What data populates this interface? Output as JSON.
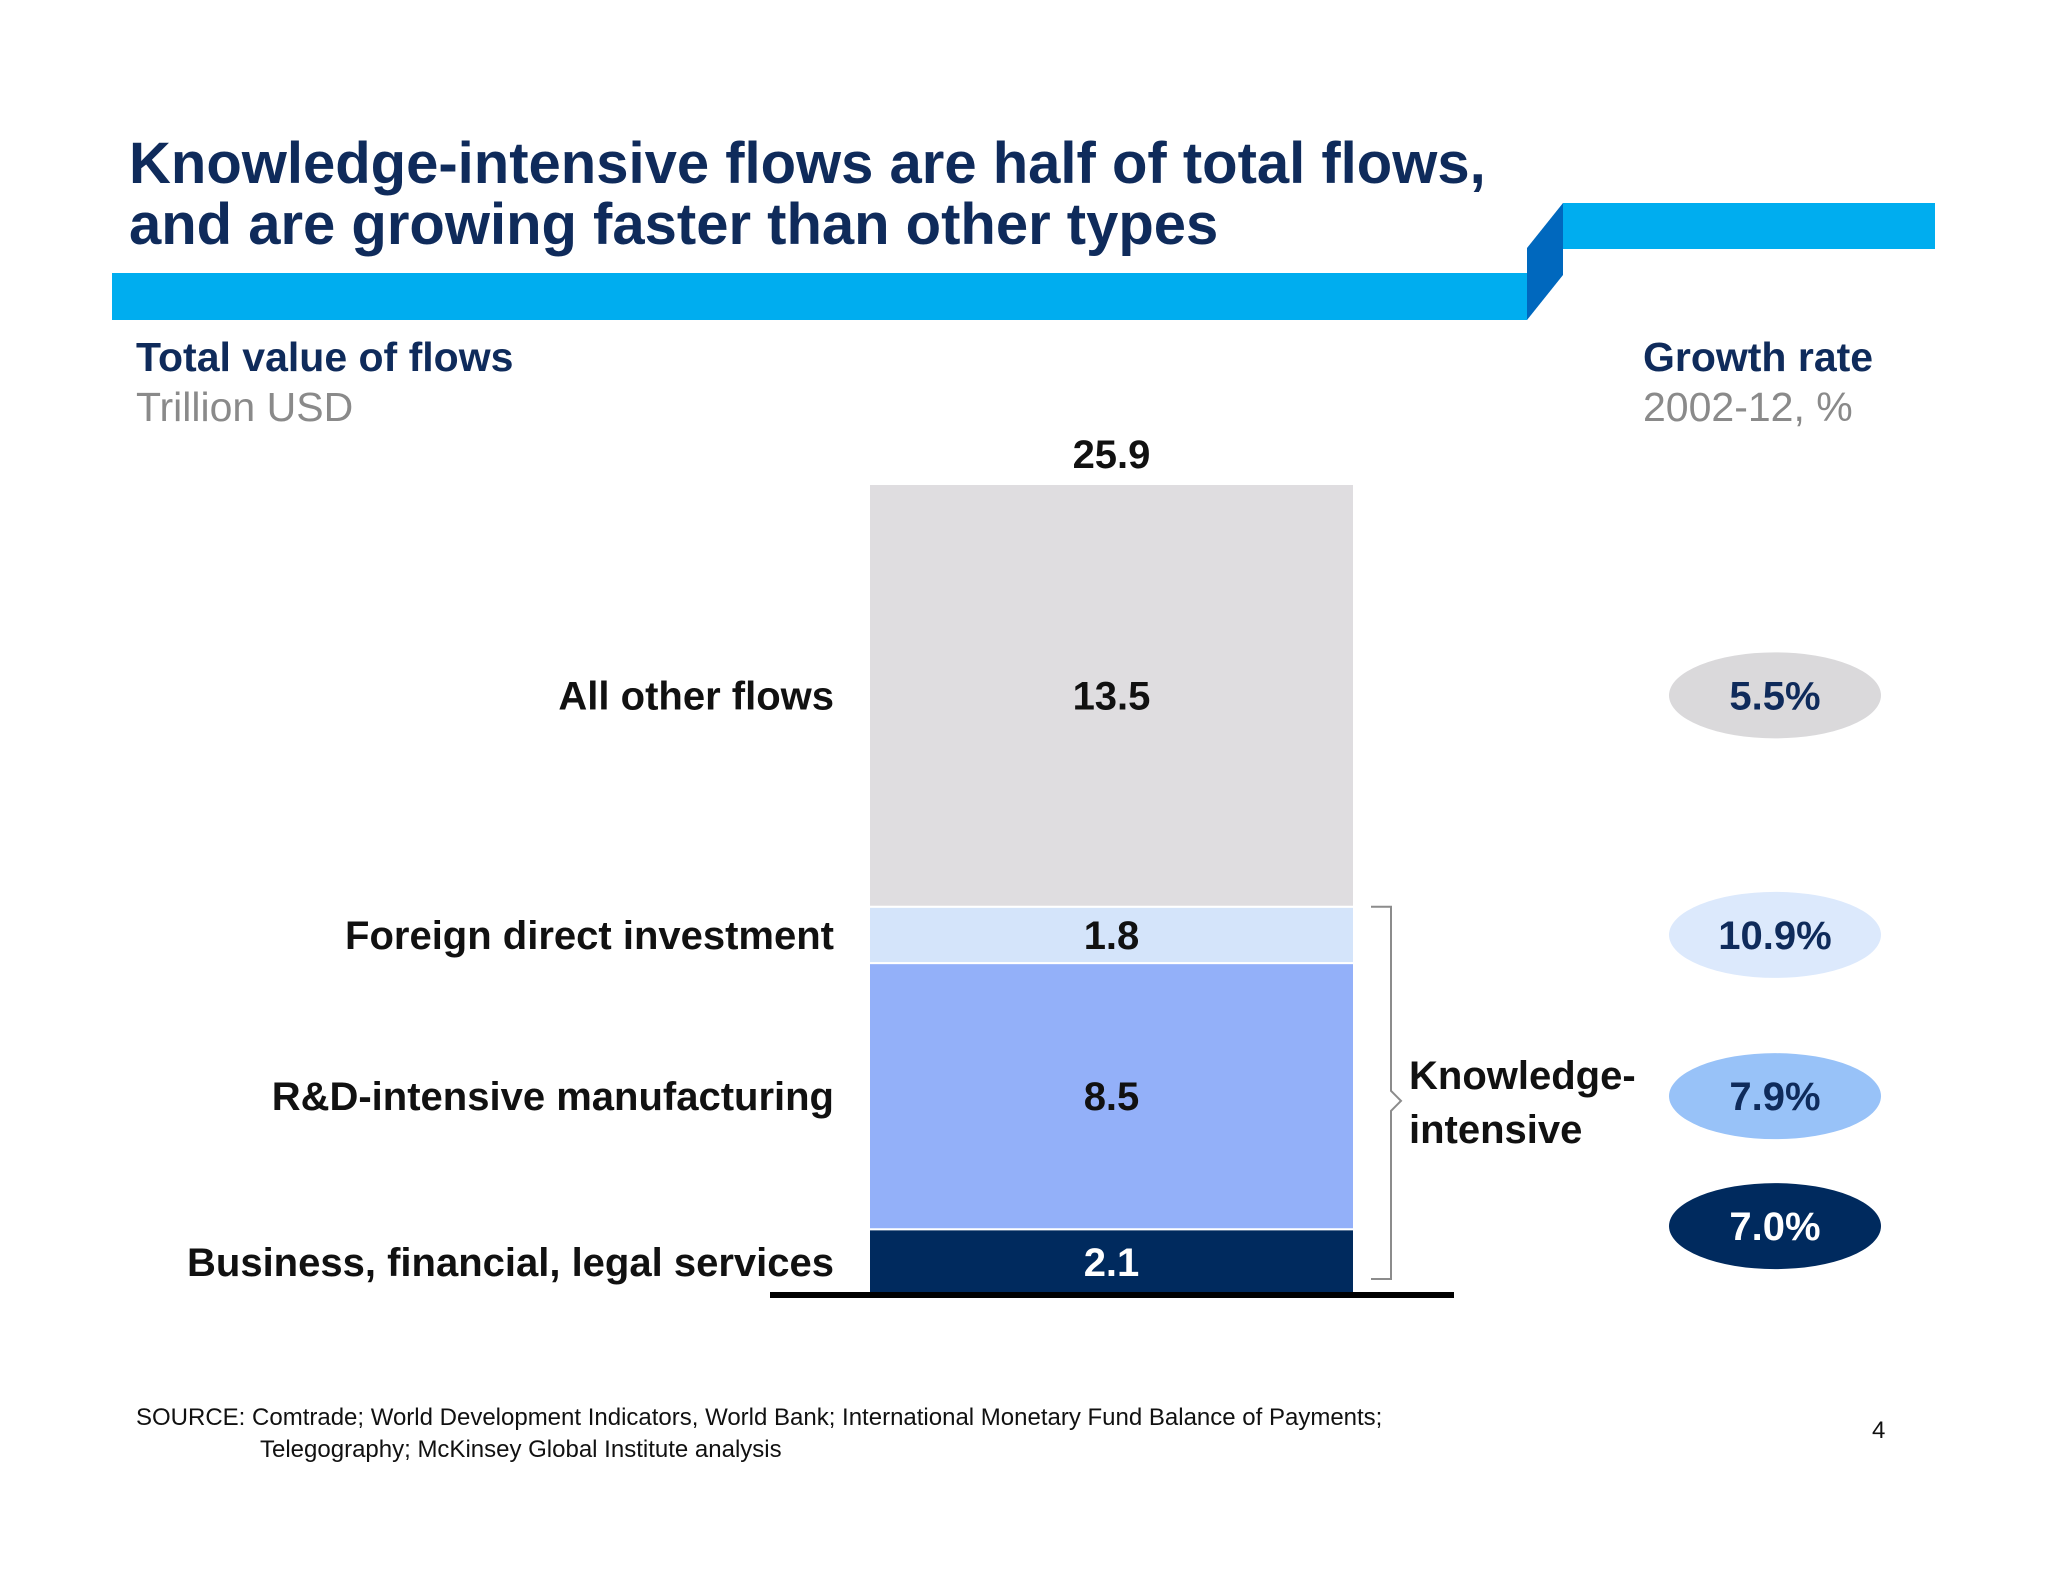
{
  "title": {
    "line1": "Knowledge-intensive flows are half of total flows,",
    "line2": "and are growing faster than other types"
  },
  "left_header": {
    "title": "Total value of flows",
    "unit": "Trillion USD"
  },
  "right_header": {
    "title": "Growth rate",
    "unit": "2002-12, %"
  },
  "chart_data": {
    "type": "bar",
    "stacked": true,
    "total": 25.9,
    "segments": [
      {
        "label": "Business, financial, legal services",
        "value": 2.1,
        "growth": "7.0%",
        "color": "#002a5e",
        "text_color": "#ffffff",
        "pill_color": "#002a5e",
        "pill_text_color": "#ffffff"
      },
      {
        "label": "R&D-intensive manufacturing",
        "value": 8.5,
        "growth": "7.9%",
        "color": "#93b0f9",
        "text_color": "#111111",
        "pill_color": "#98c2f8",
        "pill_text_color": "#0f2b5b"
      },
      {
        "label": "Foreign direct investment",
        "value": 1.8,
        "growth": "10.9%",
        "color": "#d4e4fa",
        "text_color": "#111111",
        "pill_color": "#dce9fc",
        "pill_text_color": "#0f2b5b"
      },
      {
        "label": "All other flows",
        "value": 13.5,
        "growth": "5.5%",
        "color": "#dfdde0",
        "text_color": "#111111",
        "pill_color": "#dad9db",
        "pill_text_color": "#0f2b5b"
      }
    ],
    "bracket_label": [
      "Knowledge-",
      "intensive"
    ],
    "ylim": [
      0,
      25.9
    ]
  },
  "footer": {
    "source_line1": "SOURCE: Comtrade; World Development Indicators, World Bank; International Monetary Fund Balance of Payments;",
    "source_line2": "Telegography; McKinsey Global Institute analysis",
    "page_number": "4"
  },
  "colors": {
    "navy": "#0f2b5b",
    "banner": "#00adef",
    "banner_dark": "#0068be"
  }
}
